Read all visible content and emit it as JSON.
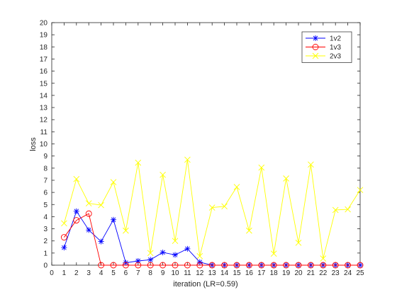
{
  "chart_data": {
    "type": "line",
    "title": "",
    "xlabel": "iteration (LR=0.59)",
    "ylabel": "loss",
    "xlim": [
      0,
      25
    ],
    "ylim": [
      0,
      20
    ],
    "x_ticks": [
      "0",
      "1",
      "2",
      "3",
      "4",
      "5",
      "6",
      "7",
      "8",
      "9",
      "10",
      "11",
      "12",
      "13",
      "14",
      "15",
      "16",
      "17",
      "18",
      "19",
      "20",
      "21",
      "22",
      "23",
      "24",
      "25"
    ],
    "y_ticks": [
      "0",
      "1",
      "2",
      "3",
      "4",
      "5",
      "6",
      "7",
      "8",
      "9",
      "10",
      "11",
      "12",
      "13",
      "14",
      "15",
      "16",
      "17",
      "18",
      "19",
      "20"
    ],
    "grid": false,
    "legend_position": "top-right",
    "series": [
      {
        "name": "1v2",
        "color": "#0000ff",
        "marker": "asterisk",
        "x": [
          1,
          2,
          3,
          4,
          5,
          6,
          7,
          8,
          9,
          10,
          11,
          12,
          13,
          14,
          15,
          16,
          17,
          18,
          19,
          20,
          21,
          22,
          23,
          24,
          25
        ],
        "values": [
          1.45,
          4.45,
          2.9,
          1.95,
          3.75,
          0.2,
          0.35,
          0.45,
          1.05,
          0.85,
          1.35,
          0.25,
          0,
          0,
          0,
          0,
          0,
          0,
          0,
          0,
          0,
          0,
          0,
          0,
          0
        ]
      },
      {
        "name": "1v3",
        "color": "#ff0000",
        "marker": "circle",
        "x": [
          1,
          2,
          3,
          4,
          5,
          6,
          7,
          8,
          9,
          10,
          11,
          12,
          13,
          14,
          15,
          16,
          17,
          18,
          19,
          20,
          21,
          22,
          23,
          24,
          25
        ],
        "values": [
          2.3,
          3.7,
          4.25,
          0,
          0,
          0,
          0,
          0,
          0,
          0,
          0,
          0,
          0,
          0,
          0,
          0,
          0,
          0,
          0,
          0,
          0,
          0,
          0,
          0,
          0
        ]
      },
      {
        "name": "2v3",
        "color": "#ffff00",
        "marker": "x",
        "x": [
          1,
          2,
          3,
          4,
          5,
          6,
          7,
          8,
          9,
          10,
          11,
          12,
          13,
          14,
          15,
          16,
          17,
          18,
          19,
          20,
          21,
          22,
          23,
          24,
          25
        ],
        "values": [
          3.45,
          7.1,
          5.1,
          4.95,
          6.85,
          2.85,
          8.45,
          1.0,
          7.45,
          2.0,
          8.7,
          0.75,
          4.75,
          4.85,
          6.45,
          2.85,
          8.05,
          0.95,
          7.15,
          1.85,
          8.3,
          0.55,
          4.55,
          4.6,
          6.2
        ]
      }
    ]
  }
}
